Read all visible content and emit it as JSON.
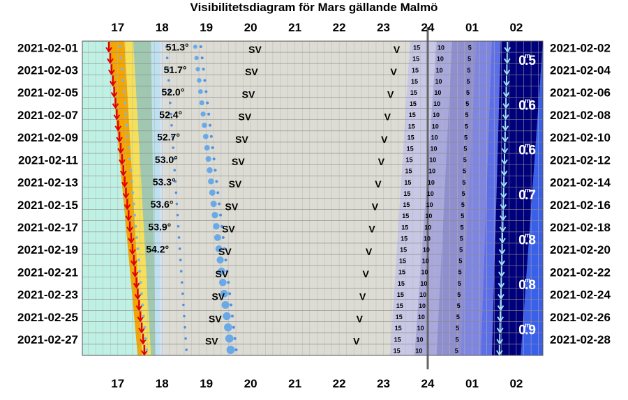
{
  "title": "Visibilitetsdiagram för Mars gällande Malmö",
  "chart_data": {
    "type": "visibility-diagram",
    "title": "Visibilitetsdiagram för Mars gällande Malmö",
    "x_hours": [
      "17",
      "18",
      "19",
      "20",
      "21",
      "22",
      "23",
      "24",
      "01",
      "02"
    ],
    "x_range_hours": [
      16.2,
      26.6
    ],
    "left_dates": [
      "2021-02-01",
      "2021-02-03",
      "2021-02-05",
      "2021-02-07",
      "2021-02-09",
      "2021-02-11",
      "2021-02-13",
      "2021-02-15",
      "2021-02-17",
      "2021-02-19",
      "2021-02-21",
      "2021-02-23",
      "2021-02-25",
      "2021-02-27"
    ],
    "right_dates": [
      "2021-02-02",
      "2021-02-04",
      "2021-02-06",
      "2021-02-08",
      "2021-02-10",
      "2021-02-12",
      "2021-02-14",
      "2021-02-16",
      "2021-02-18",
      "2021-02-20",
      "2021-02-22",
      "2021-02-24",
      "2021-02-26",
      "2021-02-28"
    ],
    "sunset_hours": [
      16.75,
      16.8,
      16.85,
      16.9,
      16.96,
      17.02,
      17.08,
      17.14,
      17.2,
      17.26,
      17.32,
      17.38,
      17.44,
      17.5,
      17.55,
      17.6
    ],
    "max_altitude": [
      {
        "label": "51.3°",
        "hour": 18.0
      },
      {
        "label": "51.7°",
        "hour": 17.95
      },
      {
        "label": "52.0°",
        "hour": 17.9
      },
      {
        "label": "52.4°",
        "hour": 17.85
      },
      {
        "label": "52.7°",
        "hour": 17.8
      },
      {
        "label": "53.0°",
        "hour": 17.75
      },
      {
        "label": "53.3°",
        "hour": 17.7
      },
      {
        "label": "53.6°",
        "hour": 17.65
      },
      {
        "label": "53.9°",
        "hour": 17.6
      },
      {
        "label": "54.2°",
        "hour": 17.55
      }
    ],
    "sv_label": "SV",
    "sv_hours": [
      20.1,
      20.02,
      19.95,
      19.87,
      19.8,
      19.72,
      19.65,
      19.57,
      19.5,
      19.42,
      19.35,
      19.27,
      19.2,
      19.12
    ],
    "v_label": "V",
    "v_hours": [
      23.3,
      23.23,
      23.16,
      23.09,
      23.02,
      22.95,
      22.88,
      22.81,
      22.74,
      22.67,
      22.6,
      22.53,
      22.46,
      22.39
    ],
    "moonless_markers": [
      "15",
      "10",
      "5"
    ],
    "marker_hours_start": [
      23.75,
      24.3,
      24.95
    ],
    "marker_hours_end": [
      23.3,
      23.8,
      24.65
    ],
    "magnitudes": [
      "0.5",
      "0.6",
      "0.6",
      "0.7",
      "0.8",
      "0.8",
      "0.9"
    ],
    "moonset_hours": [
      25.8,
      25.62
    ],
    "colors": {
      "dusk_cyan": "#bff0e4",
      "sunset_orange": "#f5a500",
      "sunset_yellow": "#f6e05a",
      "grid_gray": "#dcdcd4",
      "night_blue": "#00007a",
      "mid_blue": "#3a5fe8",
      "arrow_red": "#e00000",
      "dot_blue": "#4f90e4"
    }
  }
}
